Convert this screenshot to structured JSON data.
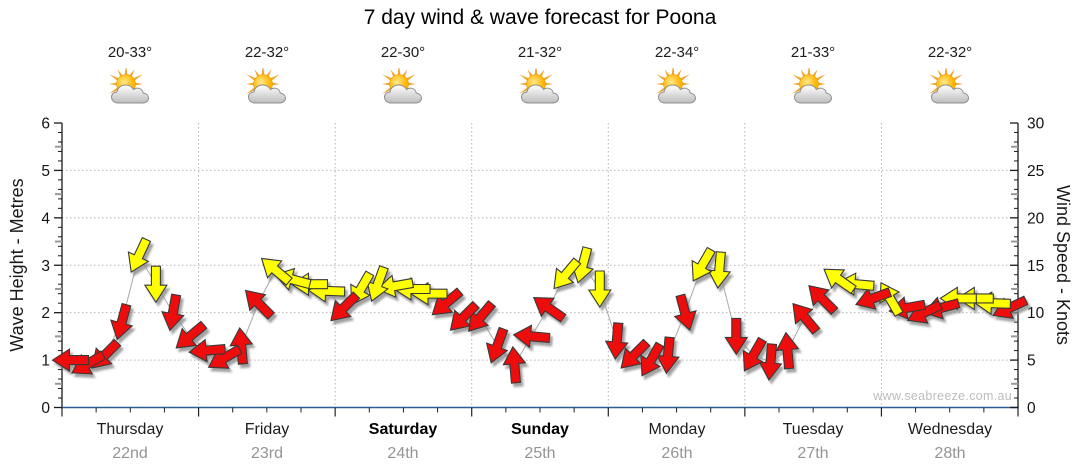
{
  "title": "7 day wind & wave forecast for Poona",
  "watermark": "www.seabreeze.com.au",
  "days": [
    {
      "name": "Thursday",
      "date": "22nd",
      "temp": "20-33°",
      "bold": false
    },
    {
      "name": "Friday",
      "date": "23rd",
      "temp": "22-32°",
      "bold": false
    },
    {
      "name": "Saturday",
      "date": "24th",
      "temp": "22-30°",
      "bold": true
    },
    {
      "name": "Sunday",
      "date": "25th",
      "temp": "21-32°",
      "bold": true
    },
    {
      "name": "Monday",
      "date": "26th",
      "temp": "22-34°",
      "bold": false
    },
    {
      "name": "Tuesday",
      "date": "27th",
      "temp": "21-33°",
      "bold": false
    },
    {
      "name": "Wednesday",
      "date": "28th",
      "temp": "22-32°",
      "bold": false
    }
  ],
  "left_axis": {
    "label": "Wave Height - Metres",
    "ticks": [
      0,
      1,
      2,
      3,
      4,
      5,
      6
    ],
    "max": 6
  },
  "right_axis": {
    "label": "Wind Speed - Knots",
    "ticks": [
      0,
      5,
      10,
      15,
      20,
      25,
      30
    ],
    "max": 30
  },
  "colors": {
    "red": "#ee0d0d",
    "yellow": "#ffff00",
    "arrow_outline": "#383838",
    "bottom_axis": "#2b5f94",
    "axis": "#1a1a1a",
    "grid": "#b5b5b5",
    "tick_mid": "#999999",
    "line": "#a8a8a8",
    "date_text": "#949494",
    "watermark_text": "#bcbcbc"
  },
  "chart_data": {
    "type": "wind-arrows",
    "title": "7 day wind & wave forecast for Poona",
    "x_categories": [
      "Thursday 22nd",
      "Friday 23rd",
      "Saturday 24th",
      "Sunday 25th",
      "Monday 26th",
      "Tuesday 27th",
      "Wednesday 28th"
    ],
    "slots_per_day": 8,
    "ylim_knots": [
      0,
      30
    ],
    "ylim_metres": [
      0,
      6
    ],
    "grid": "dotted, horizontal every 5 knots, vertical at day boundaries",
    "legend": "arrow colour = wind strength band (red < ~11 kn, yellow ~11-17 kn); arrow angle = wind direction; height = wind speed in knots",
    "knots": [
      [
        5,
        4.6,
        5.5,
        9,
        16,
        13,
        10,
        7.5
      ],
      [
        6,
        5.2,
        6.5,
        11,
        14.5,
        13.5,
        13,
        12.3
      ],
      [
        10.5,
        12.5,
        13,
        12.8,
        12.5,
        12,
        11,
        9.5
      ],
      [
        9.5,
        6.5,
        4.5,
        7.5,
        10.5,
        14,
        15,
        12.5
      ],
      [
        7,
        5.5,
        5,
        5.5,
        10,
        15,
        14.5,
        7.5
      ],
      [
        5.5,
        4.8,
        6,
        9.5,
        11.5,
        13.5,
        13,
        11.5
      ],
      [
        11.5,
        10.5,
        10,
        10.5,
        11.5,
        11.5,
        11,
        10.5
      ]
    ],
    "dir_deg": [
      [
        180,
        150,
        135,
        105,
        115,
        90,
        100,
        140
      ],
      [
        175,
        150,
        265,
        225,
        220,
        195,
        180,
        182
      ],
      [
        135,
        120,
        110,
        170,
        180,
        180,
        140,
        135
      ],
      [
        130,
        110,
        265,
        185,
        215,
        130,
        105,
        90
      ],
      [
        95,
        135,
        120,
        95,
        75,
        120,
        95,
        90
      ],
      [
        120,
        95,
        265,
        230,
        225,
        215,
        185,
        160
      ],
      [
        240,
        170,
        155,
        165,
        180,
        180,
        182,
        155
      ]
    ],
    "color": [
      [
        "r",
        "r",
        "r",
        "r",
        "y",
        "y",
        "r",
        "r"
      ],
      [
        "r",
        "r",
        "r",
        "r",
        "y",
        "y",
        "y",
        "y"
      ],
      [
        "r",
        "y",
        "y",
        "y",
        "y",
        "y",
        "r",
        "r"
      ],
      [
        "r",
        "r",
        "r",
        "r",
        "r",
        "y",
        "y",
        "y"
      ],
      [
        "r",
        "r",
        "r",
        "r",
        "r",
        "y",
        "y",
        "r"
      ],
      [
        "r",
        "r",
        "r",
        "r",
        "r",
        "y",
        "y",
        "r"
      ],
      [
        "y",
        "r",
        "r",
        "r",
        "y",
        "y",
        "y",
        "r"
      ]
    ]
  }
}
